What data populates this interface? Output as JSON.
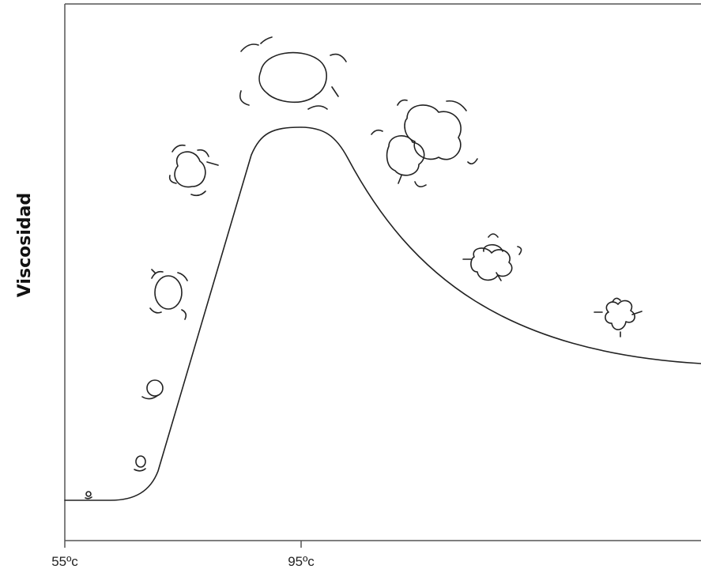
{
  "axis": {
    "y_label": "Viscosidad",
    "x_ticks": [
      "55ºc",
      "95ºc"
    ]
  }
}
